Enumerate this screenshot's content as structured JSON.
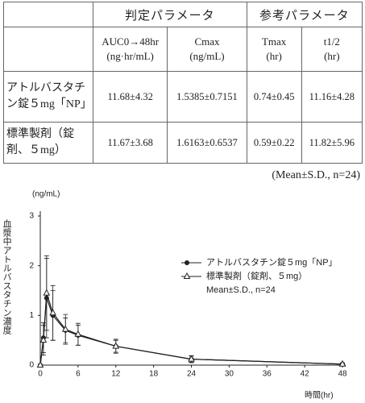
{
  "table": {
    "group_headers": [
      "判定パラメータ",
      "参考パラメータ"
    ],
    "columns": [
      {
        "name": "AUC0→48hr",
        "unit": "(ng·hr/mL)"
      },
      {
        "name": "Cmax",
        "unit": "(ng/mL)"
      },
      {
        "name": "Tmax",
        "unit": "(hr)"
      },
      {
        "name": "t1/2",
        "unit": "(hr)"
      }
    ],
    "rows": [
      [
        "アトルバスタチン錠５mg「NP」",
        "11.68±4.32",
        "1.5385±0.7151",
        "0.74±0.45",
        "11.16±4.28"
      ],
      [
        "標準製剤（錠剤、５mg）",
        "11.67±3.68",
        "1.6163±0.6537",
        "0.59±0.22",
        "11.82±5.96"
      ]
    ],
    "note": "(Mean±S.D., n=24)"
  },
  "chart_data": {
    "type": "line",
    "ylabel_unit": "(ng/mL)",
    "ylabel": "血漿中アトルバスタチン濃度",
    "xlabel": "時間(hr)",
    "x": [
      0,
      0.5,
      1,
      2,
      4,
      6,
      12,
      24,
      48
    ],
    "series": [
      {
        "name": "アトルバスタチン錠５mg「NP」",
        "color": "#222222",
        "marker": "filled-circle",
        "values": [
          0,
          0.55,
          1.35,
          1.0,
          0.7,
          0.6,
          0.38,
          0.12,
          0.02
        ],
        "errors": [
          0,
          0.3,
          0.8,
          0.5,
          0.25,
          0.2,
          0.12,
          0.06,
          0.02
        ]
      },
      {
        "name": "標準製剤（錠剤、５mg）",
        "color": "#222222",
        "marker": "open-triangle",
        "values": [
          0,
          0.5,
          1.45,
          1.05,
          0.72,
          0.62,
          0.38,
          0.12,
          0.02
        ],
        "errors": [
          0,
          0.3,
          0.75,
          0.55,
          0.3,
          0.22,
          0.14,
          0.07,
          0.02
        ]
      }
    ],
    "legend_note": "Mean±S.D., n=24",
    "xlim": [
      0,
      48
    ],
    "ylim": [
      0,
      3
    ],
    "xticks": [
      0,
      6,
      12,
      18,
      24,
      30,
      36,
      42,
      48
    ],
    "yticks": [
      0,
      1,
      2,
      3
    ]
  }
}
